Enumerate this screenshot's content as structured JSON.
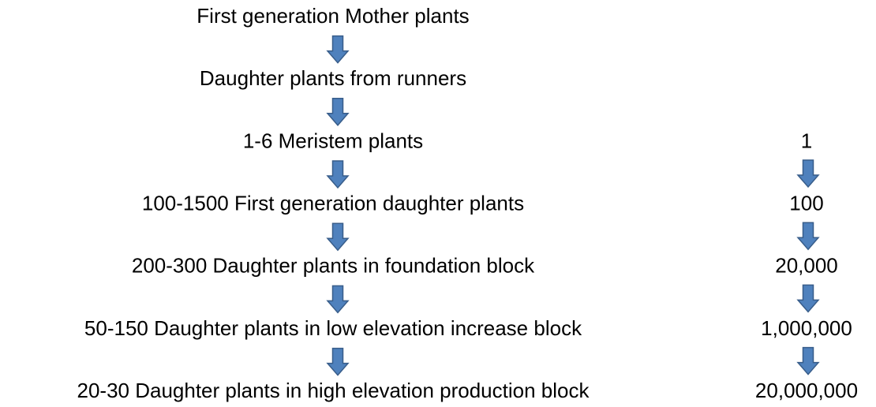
{
  "steps": [
    "First generation Mother plants",
    "Daughter plants from runners",
    "1-6 Meristem plants",
    "100-1500 First generation daughter plants",
    "200-300 Daughter plants in foundation block",
    "50-150 Daughter plants in low elevation increase block",
    "20-30 Daughter plants in high elevation  production block"
  ],
  "counts": [
    "1",
    "100",
    "20,000",
    "1,000,000",
    "20,000,000"
  ]
}
